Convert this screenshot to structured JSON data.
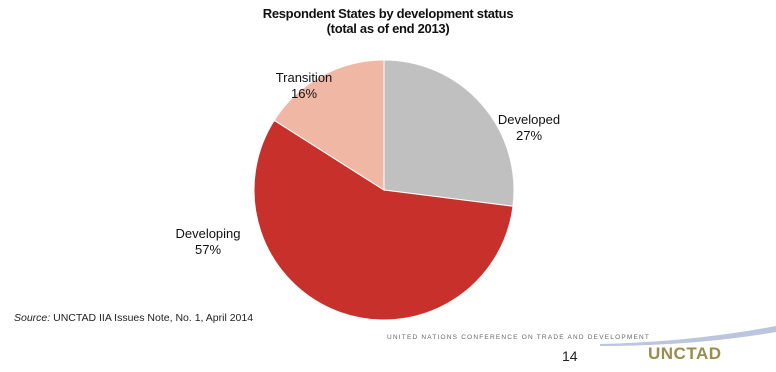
{
  "chart_data": {
    "type": "pie",
    "title": "Respondent States by development status",
    "subtitle": "(total as of end 2013)",
    "slices": [
      {
        "label": "Developed",
        "value": 27,
        "display": "27%",
        "color": "#c0c0c0"
      },
      {
        "label": "Developing",
        "value": 57,
        "display": "57%",
        "color": "#c8302c"
      },
      {
        "label": "Transition",
        "value": 16,
        "display": "16%",
        "color": "#f0b8a4"
      }
    ]
  },
  "footer": {
    "source_lead": "Source:",
    "source_text": "UNCTAD IIA Issues Note, No. 1, April 2014",
    "org_name": "UNITED NATIONS CONFERENCE ON TRADE AND DEVELOPMENT",
    "page_number": "14",
    "logo_text": "UNCTAD"
  }
}
